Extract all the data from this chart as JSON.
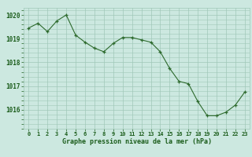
{
  "x": [
    0,
    1,
    2,
    3,
    4,
    5,
    6,
    7,
    8,
    9,
    10,
    11,
    12,
    13,
    14,
    15,
    16,
    17,
    18,
    19,
    20,
    21,
    22,
    23
  ],
  "y": [
    1019.45,
    1019.65,
    1019.3,
    1019.75,
    1020.0,
    1019.15,
    1018.85,
    1018.6,
    1018.45,
    1018.8,
    1019.05,
    1019.05,
    1018.95,
    1018.85,
    1018.45,
    1017.75,
    1017.2,
    1017.1,
    1016.35,
    1015.75,
    1015.75,
    1015.9,
    1016.2,
    1016.75
  ],
  "line_color": "#2d6a2d",
  "marker_color": "#2d6a2d",
  "bg_color": "#cce8e0",
  "grid_color": "#a0c8b8",
  "xlabel": "Graphe pression niveau de la mer (hPa)",
  "xlabel_color": "#1a5c1a",
  "tick_label_color": "#1a5c1a",
  "ylim": [
    1015.2,
    1020.3
  ],
  "yticks": [
    1016,
    1017,
    1018,
    1019,
    1020
  ],
  "xticks": [
    0,
    1,
    2,
    3,
    4,
    5,
    6,
    7,
    8,
    9,
    10,
    11,
    12,
    13,
    14,
    15,
    16,
    17,
    18,
    19,
    20,
    21,
    22,
    23
  ]
}
